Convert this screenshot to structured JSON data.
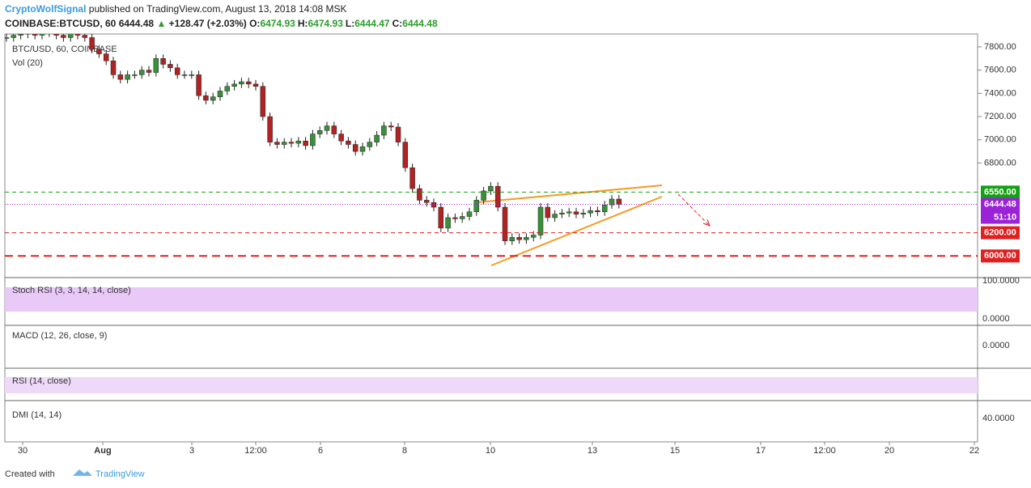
{
  "header": {
    "author": "CryptoWolfSignal",
    "published": "published on TradingView.com, August 13, 2018 14:08 MSK",
    "symbol": "COINBASE:BTCUSD, 60",
    "last": "6444.48",
    "arrow": "▲",
    "change": "+128.47 (+2.03%)",
    "ohlc": [
      {
        "key": "O:",
        "val": "6474.93"
      },
      {
        "key": "H:",
        "val": "6474.93"
      },
      {
        "key": "L:",
        "val": "6444.47"
      },
      {
        "key": "C:",
        "val": "6444.48"
      }
    ]
  },
  "chart_data": {
    "type": "candlestick",
    "title": "BTC/USD, 60, COINBASE",
    "volume_label": "Vol (20)",
    "values": [
      7880,
      7900,
      7910,
      7920,
      7900,
      7920,
      7940,
      7900,
      7880,
      7920,
      7900,
      7880,
      7780,
      7740,
      7680,
      7560,
      7520,
      7560,
      7560,
      7600,
      7580,
      7700,
      7650,
      7620,
      7560,
      7560,
      7560,
      7380,
      7340,
      7370,
      7420,
      7460,
      7480,
      7500,
      7480,
      7460,
      7200,
      6980,
      6960,
      6980,
      6970,
      6990,
      6950,
      7050,
      7080,
      7120,
      7050,
      6990,
      6960,
      6900,
      6940,
      6980,
      7040,
      7120,
      7110,
      6980,
      6760,
      6580,
      6480,
      6460,
      6420,
      6240,
      6330,
      6320,
      6340,
      6380,
      6480,
      6560,
      6600,
      6420,
      6130,
      6160,
      6140,
      6160,
      6180,
      6420,
      6330,
      6360,
      6370,
      6380,
      6360,
      6370,
      6390,
      6380,
      6440,
      6490,
      6444.48
    ],
    "up_color": "#3a8f3a",
    "down_color": "#b22222",
    "ylim": [
      5814,
      7911
    ],
    "yticks": [
      {
        "value": 6800,
        "label": "6800.00"
      },
      {
        "value": 7000,
        "label": "7000.00"
      },
      {
        "value": 7200,
        "label": "7200.00"
      },
      {
        "value": 7400,
        "label": "7400.00"
      },
      {
        "value": 7600,
        "label": "7600.00"
      },
      {
        "value": 7800,
        "label": "7800.00"
      }
    ],
    "levels": [
      {
        "value": 6550,
        "label": "6550.00",
        "color": "#14a014"
      },
      {
        "value": 6200,
        "label": "6200.00",
        "color": "#e0201f"
      },
      {
        "value": 6000,
        "label": "6000.00",
        "color": "#e0201f"
      }
    ],
    "price_label": {
      "value": 6444.48,
      "label": "6444.48",
      "color": "#9b22d6"
    },
    "countdown": "51:10",
    "x_labels": [
      "30",
      "Aug",
      "3",
      "12:00",
      "6",
      "8",
      "10",
      "13",
      "15",
      "17",
      "12:00",
      "20",
      "22"
    ],
    "indicators": [
      {
        "name": "Stoch RSI (3, 3, 14, 14, close)",
        "ticks": [
          "100.0000",
          "0.0000"
        ]
      },
      {
        "name": "MACD (12, 26, close, 9)",
        "ticks": [
          "0.0000"
        ]
      },
      {
        "name": "RSI (14, close)",
        "ticks": []
      },
      {
        "name": "DMI (14, 14)",
        "ticks": [
          "40.0000"
        ]
      }
    ]
  },
  "footer": {
    "created": "Created with",
    "brand": "TradingView"
  }
}
